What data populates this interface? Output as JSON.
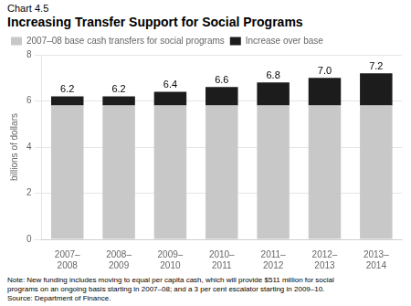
{
  "chart_data": {
    "type": "bar",
    "chart_label": "Chart 4.5",
    "title": "Increasing Transfer Support for Social Programs",
    "ylabel": "billions of dollars",
    "categories": [
      "2007–\n2008",
      "2008–\n2009",
      "2009–\n2010",
      "2010–\n2011",
      "2011–\n2012",
      "2012–\n2013",
      "2013–\n2014"
    ],
    "series": [
      {
        "name": "2007–08 base cash transfers for social programs",
        "color": "#c8c8c8",
        "values": [
          5.8,
          5.8,
          5.8,
          5.8,
          5.8,
          5.8,
          5.8
        ]
      },
      {
        "name": "Increase over base",
        "color": "#1c1c1c",
        "values": [
          0.4,
          0.4,
          0.6,
          0.8,
          1.0,
          1.2,
          1.4
        ]
      }
    ],
    "stacked": true,
    "totals": [
      6.2,
      6.2,
      6.4,
      6.6,
      6.8,
      7.0,
      7.2
    ],
    "total_labels": [
      "6.2",
      "6.2",
      "6.4",
      "6.6",
      "6.8",
      "7.0",
      "7.2"
    ],
    "ylim": [
      0,
      8
    ],
    "yticks": [
      0,
      2,
      4,
      6,
      8
    ],
    "grid": true,
    "legend": "upper left",
    "note": "Note: New funding includes moving to equal per capita cash, which will provide $511 million for social\nprograms on an ongoing basis starting in 2007–08; and a 3 per cent escalator starting in 2009–10.\nSource: Department of Finance."
  }
}
